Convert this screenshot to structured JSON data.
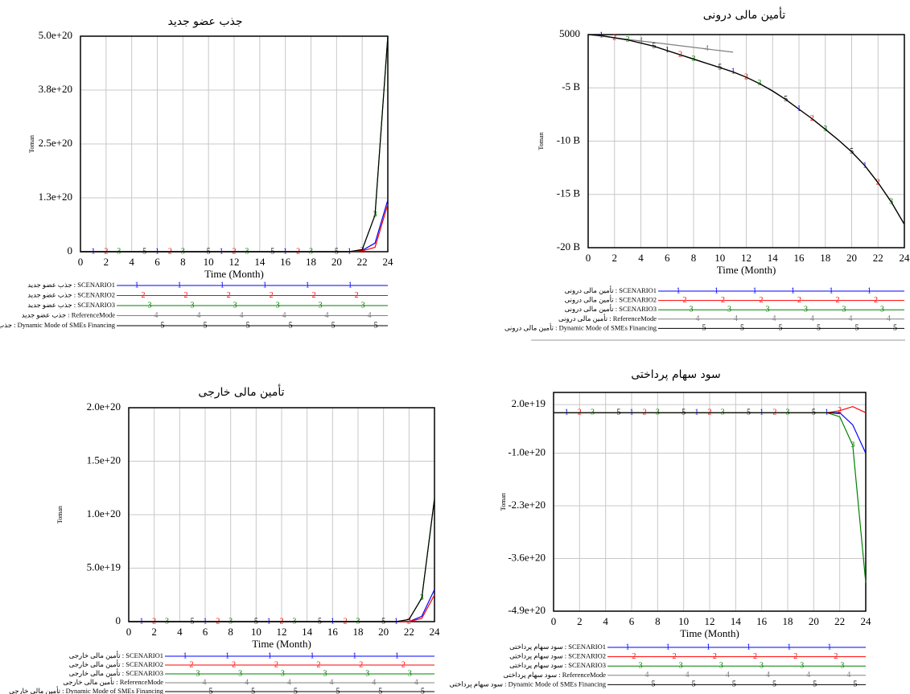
{
  "chart_data": [
    {
      "type": "line",
      "title": "جذب عضو جدید",
      "xlabel": "Time (Month)",
      "ylabel": "Toman",
      "grid": true,
      "x": [
        0,
        1,
        2,
        3,
        4,
        5,
        6,
        7,
        8,
        9,
        10,
        11,
        12,
        13,
        14,
        15,
        16,
        17,
        18,
        19,
        20,
        21,
        22,
        23,
        24
      ],
      "xlim": [
        0,
        24
      ],
      "xticks": [
        0,
        2,
        4,
        6,
        8,
        10,
        12,
        14,
        16,
        18,
        20,
        22,
        24
      ],
      "ylim": [
        0,
        5e+20
      ],
      "yticks": [
        0,
        {
          "value": 1.25e+20,
          "label": "1.3e+20"
        },
        {
          "value": 2.5e+20,
          "label": "2.5e+20"
        },
        {
          "value": 3.75e+20,
          "label": "3.8e+20"
        },
        {
          "value": 5e+20,
          "label": "5.0e+20"
        }
      ],
      "series": [
        {
          "name": "جذب عضو جدید : SCENARIO1",
          "marker": "1",
          "color": "#0000ff",
          "values": [
            0,
            0,
            0,
            0,
            0,
            0,
            0,
            0,
            0,
            0,
            0,
            0,
            0,
            0,
            0,
            0,
            0,
            0,
            0,
            0,
            0,
            0,
            3e+18,
            2e+19,
            1.2e+20
          ]
        },
        {
          "name": "جذب عضو جدید : SCENARIO2",
          "marker": "2",
          "color": "#ff0000",
          "values": [
            0,
            0,
            0,
            0,
            0,
            0,
            0,
            0,
            0,
            0,
            0,
            0,
            0,
            0,
            0,
            0,
            0,
            0,
            0,
            0,
            0,
            0,
            2e+18,
            1e+19,
            1.1e+20
          ]
        },
        {
          "name": "جذب عضو جدید : SCENARIO3",
          "marker": "3",
          "color": "#008000",
          "values": [
            0,
            0,
            0,
            0,
            0,
            0,
            0,
            0,
            0,
            0,
            0,
            0,
            0,
            0,
            0,
            0,
            0,
            0,
            0,
            0,
            0,
            0,
            5e+18,
            8.5e+19,
            5e+20
          ]
        },
        {
          "name": "جذب عضو جدید : ReferenceMode",
          "marker": "4",
          "color": "#808080",
          "values": [
            null,
            null,
            null,
            null,
            null,
            null,
            null,
            null,
            null,
            null,
            null,
            null,
            null,
            null,
            null,
            null,
            null,
            null,
            null,
            null,
            null,
            null,
            null,
            null,
            null
          ]
        },
        {
          "name": "جذب عضو جدید : Dynamic Mode of SMEs Financing",
          "marker": "5",
          "color": "#000000",
          "values": [
            0,
            0,
            0,
            0,
            0,
            0,
            0,
            0,
            0,
            0,
            0,
            0,
            0,
            0,
            0,
            0,
            0,
            0,
            0,
            0,
            0,
            0,
            5e+18,
            8.5e+19,
            5e+20
          ]
        }
      ]
    },
    {
      "type": "line",
      "title": "تأمین مالی درونی",
      "xlabel": "Time (Month)",
      "ylabel": "Toman",
      "grid": true,
      "x": [
        0,
        1,
        2,
        3,
        4,
        5,
        6,
        7,
        8,
        9,
        10,
        11,
        12,
        13,
        14,
        15,
        16,
        17,
        18,
        19,
        20,
        21,
        22,
        23,
        24
      ],
      "xlim": [
        0,
        24
      ],
      "xticks": [
        0,
        2,
        4,
        6,
        8,
        10,
        12,
        14,
        16,
        18,
        20,
        22,
        24
      ],
      "ylim": [
        -20000000000.0,
        5000
      ],
      "yticks": [
        5000,
        {
          "value": -5000000000.0,
          "label": "-5 B"
        },
        {
          "value": -10000000000.0,
          "label": "-10 B"
        },
        {
          "value": -15000000000.0,
          "label": "-15 B"
        },
        {
          "value": -20000000000.0,
          "label": "-20 B"
        }
      ],
      "series": [
        {
          "name": "تأمین مالی درونی : SCENARIO1",
          "marker": "1",
          "color": "#0000ff",
          "values": [
            0,
            -100000000.0,
            -300000000.0,
            -500000000.0,
            -800000000.0,
            -1100000000.0,
            -1500000000.0,
            -1900000000.0,
            -2300000000.0,
            -2700000000.0,
            -3100000000.0,
            -3500000000.0,
            -4000000000.0,
            -4600000000.0,
            -5300000000.0,
            -6100000000.0,
            -7000000000.0,
            -7900000000.0,
            -8900000000.0,
            -9900000000.0,
            -11000000000.0,
            -12300000000.0,
            -13900000000.0,
            -15700000000.0,
            -17800000000.0
          ]
        },
        {
          "name": "تأمین مالی درونی : SCENARIO2",
          "marker": "2",
          "color": "#ff0000",
          "values": [
            0,
            -100000000.0,
            -300000000.0,
            -500000000.0,
            -800000000.0,
            -1100000000.0,
            -1500000000.0,
            -1900000000.0,
            -2300000000.0,
            -2700000000.0,
            -3100000000.0,
            -3500000000.0,
            -4000000000.0,
            -4600000000.0,
            -5300000000.0,
            -6100000000.0,
            -7000000000.0,
            -7900000000.0,
            -8900000000.0,
            -9900000000.0,
            -11000000000.0,
            -12300000000.0,
            -13900000000.0,
            -15700000000.0,
            -17800000000.0
          ]
        },
        {
          "name": "تأمین مالی درونی : SCENARIO3",
          "marker": "3",
          "color": "#008000",
          "values": [
            0,
            -100000000.0,
            -300000000.0,
            -500000000.0,
            -800000000.0,
            -1100000000.0,
            -1500000000.0,
            -1900000000.0,
            -2300000000.0,
            -2700000000.0,
            -3100000000.0,
            -3500000000.0,
            -4000000000.0,
            -4600000000.0,
            -5300000000.0,
            -6100000000.0,
            -7000000000.0,
            -7900000000.0,
            -8900000000.0,
            -9900000000.0,
            -11000000000.0,
            -12300000000.0,
            -13900000000.0,
            -15700000000.0,
            -17800000000.0
          ]
        },
        {
          "name": "تأمین مالی درونی : ReferenceMode",
          "marker": "4",
          "color": "#808080",
          "values": [
            0,
            -150000000.0,
            -300000000.0,
            -450000000.0,
            -600000000.0,
            -750000000.0,
            -900000000.0,
            -1050000000.0,
            -1200000000.0,
            -1350000000.0,
            -1500000000.0,
            -1650000000.0,
            null,
            null,
            null,
            null,
            null,
            null,
            null,
            null,
            null,
            null,
            null,
            null,
            null
          ]
        },
        {
          "name": "تأمین مالی درونی : Dynamic Mode of SMEs Financing",
          "marker": "5",
          "color": "#000000",
          "values": [
            0,
            -100000000.0,
            -300000000.0,
            -500000000.0,
            -800000000.0,
            -1100000000.0,
            -1500000000.0,
            -1900000000.0,
            -2300000000.0,
            -2700000000.0,
            -3100000000.0,
            -3500000000.0,
            -4000000000.0,
            -4600000000.0,
            -5300000000.0,
            -6100000000.0,
            -7000000000.0,
            -7900000000.0,
            -8900000000.0,
            -9900000000.0,
            -11000000000.0,
            -12300000000.0,
            -13900000000.0,
            -15700000000.0,
            -17800000000.0
          ]
        }
      ]
    },
    {
      "type": "line",
      "title": "تأمین مالی خارجی",
      "xlabel": "Time (Month)",
      "ylabel": "Toman",
      "grid": true,
      "x": [
        0,
        1,
        2,
        3,
        4,
        5,
        6,
        7,
        8,
        9,
        10,
        11,
        12,
        13,
        14,
        15,
        16,
        17,
        18,
        19,
        20,
        21,
        22,
        23,
        24
      ],
      "xlim": [
        0,
        24
      ],
      "xticks": [
        0,
        2,
        4,
        6,
        8,
        10,
        12,
        14,
        16,
        18,
        20,
        22,
        24
      ],
      "ylim": [
        0,
        2e+20
      ],
      "yticks": [
        0,
        {
          "value": 5e+19,
          "label": "5.0e+19"
        },
        {
          "value": 1e+20,
          "label": "1.0e+20"
        },
        {
          "value": 1.5e+20,
          "label": "1.5e+20"
        },
        {
          "value": 2e+20,
          "label": "2.0e+20"
        }
      ],
      "series": [
        {
          "name": "تأمین مالی خارجی : SCENARIO1",
          "marker": "1",
          "color": "#0000ff",
          "values": [
            0,
            0,
            0,
            0,
            0,
            0,
            0,
            0,
            0,
            0,
            0,
            0,
            0,
            0,
            0,
            0,
            0,
            0,
            0,
            0,
            0,
            0,
            0,
            5e+18,
            3e+19
          ]
        },
        {
          "name": "تأمین مالی خارجی : SCENARIO2",
          "marker": "2",
          "color": "#ff0000",
          "values": [
            0,
            0,
            0,
            0,
            0,
            0,
            0,
            0,
            0,
            0,
            0,
            0,
            0,
            0,
            0,
            0,
            0,
            0,
            0,
            0,
            0,
            0,
            0,
            3e+18,
            2.5e+19
          ]
        },
        {
          "name": "تأمین مالی خارجی : SCENARIO3",
          "marker": "3",
          "color": "#008000",
          "values": [
            0,
            0,
            0,
            0,
            0,
            0,
            0,
            0,
            0,
            0,
            0,
            0,
            0,
            0,
            0,
            0,
            0,
            0,
            0,
            0,
            0,
            0,
            2e+18,
            2.2e+19,
            1.15e+20
          ]
        },
        {
          "name": "تأمین مالی خارجی : ReferenceMode",
          "marker": "4",
          "color": "#808080",
          "values": [
            null,
            null,
            null,
            null,
            null,
            null,
            null,
            null,
            null,
            null,
            null,
            null,
            null,
            null,
            null,
            null,
            null,
            null,
            null,
            null,
            null,
            null,
            null,
            null,
            null
          ]
        },
        {
          "name": "تأمین مالی خارجی : Dynamic Mode of SMEs Financing",
          "marker": "5",
          "color": "#000000",
          "values": [
            0,
            0,
            0,
            0,
            0,
            0,
            0,
            0,
            0,
            0,
            0,
            0,
            0,
            0,
            0,
            0,
            0,
            0,
            0,
            0,
            0,
            0,
            2e+18,
            2.2e+19,
            1.15e+20
          ]
        }
      ]
    },
    {
      "type": "line",
      "title": "سود سهام پرداختی",
      "xlabel": "Time (Month)",
      "ylabel": "Toman",
      "grid": true,
      "x": [
        0,
        1,
        2,
        3,
        4,
        5,
        6,
        7,
        8,
        9,
        10,
        11,
        12,
        13,
        14,
        15,
        16,
        17,
        18,
        19,
        20,
        21,
        22,
        23,
        24
      ],
      "xlim": [
        0,
        24
      ],
      "xticks": [
        0,
        2,
        4,
        6,
        8,
        10,
        12,
        14,
        16,
        18,
        20,
        22,
        24
      ],
      "ylim": [
        -4.9e+20,
        5e+19
      ],
      "yticks": [
        {
          "value": 2e+19,
          "label": "2.0e+19"
        },
        {
          "value": -1e+20,
          "label": "-1.0e+20"
        },
        {
          "value": -2.3e+20,
          "label": "-2.3e+20"
        },
        {
          "value": -3.6e+20,
          "label": "-3.6e+20"
        },
        {
          "value": -4.9e+20,
          "label": "-4.9e+20"
        }
      ],
      "series": [
        {
          "name": "سود سهام پرداختی : SCENARIO1",
          "marker": "1",
          "color": "#0000ff",
          "values": [
            0,
            0,
            0,
            0,
            0,
            0,
            0,
            0,
            0,
            0,
            0,
            0,
            0,
            0,
            0,
            0,
            0,
            0,
            0,
            0,
            0,
            0,
            0,
            -3e+19,
            -1e+20
          ]
        },
        {
          "name": "سود سهام پرداختی : SCENARIO2",
          "marker": "2",
          "color": "#ff0000",
          "values": [
            0,
            0,
            0,
            0,
            0,
            0,
            0,
            0,
            0,
            0,
            0,
            0,
            0,
            0,
            0,
            0,
            0,
            0,
            0,
            0,
            0,
            0,
            5e+18,
            1.5e+19,
            0
          ]
        },
        {
          "name": "سود سهام پرداختی : SCENARIO3",
          "marker": "3",
          "color": "#008000",
          "values": [
            0,
            0,
            0,
            0,
            0,
            0,
            0,
            0,
            0,
            0,
            0,
            0,
            0,
            0,
            0,
            0,
            0,
            0,
            0,
            0,
            0,
            0,
            -1e+19,
            -8e+19,
            -4.2e+20
          ]
        },
        {
          "name": "سود سهام پرداختی : ReferenceMode",
          "marker": "4",
          "color": "#808080",
          "values": [
            null,
            null,
            null,
            null,
            null,
            null,
            null,
            null,
            null,
            null,
            null,
            null,
            null,
            null,
            null,
            null,
            null,
            null,
            null,
            null,
            null,
            null,
            null,
            null,
            null
          ]
        },
        {
          "name": "سود سهام پرداختی : Dynamic Mode of SMEs Financing",
          "marker": "5",
          "color": "#000000",
          "values": [
            0,
            0,
            0,
            0,
            0,
            0,
            0,
            0,
            0,
            0,
            0,
            0,
            0,
            0,
            0,
            0,
            0,
            0,
            0,
            0,
            0,
            0,
            -2e+18,
            null,
            null
          ]
        }
      ]
    }
  ]
}
